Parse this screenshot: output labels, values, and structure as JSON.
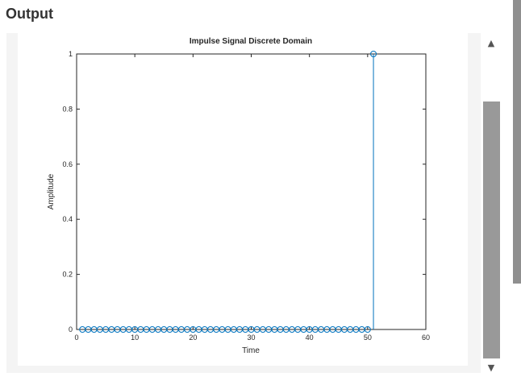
{
  "output_panel": {
    "heading": "Output"
  },
  "scrollbar": {
    "up_arrow": "▲",
    "down_arrow": "▼"
  },
  "chart_data": {
    "type": "stem",
    "title": "Impulse Signal Discrete Domain",
    "xlabel": "Time",
    "ylabel": "Amplitude",
    "xlim": [
      0,
      60
    ],
    "ylim": [
      0,
      1
    ],
    "xticks": [
      0,
      10,
      20,
      30,
      40,
      50,
      60
    ],
    "yticks": [
      0,
      0.2,
      0.4,
      0.6,
      0.8,
      1
    ],
    "ytick_labels": [
      "0",
      "0.2",
      "0.4",
      "0.6",
      "0.8",
      "1"
    ],
    "grid": false,
    "series_color": "#0072bd",
    "x": [
      1,
      2,
      3,
      4,
      5,
      6,
      7,
      8,
      9,
      10,
      11,
      12,
      13,
      14,
      15,
      16,
      17,
      18,
      19,
      20,
      21,
      22,
      23,
      24,
      25,
      26,
      27,
      28,
      29,
      30,
      31,
      32,
      33,
      34,
      35,
      36,
      37,
      38,
      39,
      40,
      41,
      42,
      43,
      44,
      45,
      46,
      47,
      48,
      49,
      50,
      51
    ],
    "y": [
      0,
      0,
      0,
      0,
      0,
      0,
      0,
      0,
      0,
      0,
      0,
      0,
      0,
      0,
      0,
      0,
      0,
      0,
      0,
      0,
      0,
      0,
      0,
      0,
      0,
      0,
      0,
      0,
      0,
      0,
      0,
      0,
      0,
      0,
      0,
      0,
      0,
      0,
      0,
      0,
      0,
      0,
      0,
      0,
      0,
      0,
      0,
      0,
      0,
      0,
      1
    ]
  }
}
